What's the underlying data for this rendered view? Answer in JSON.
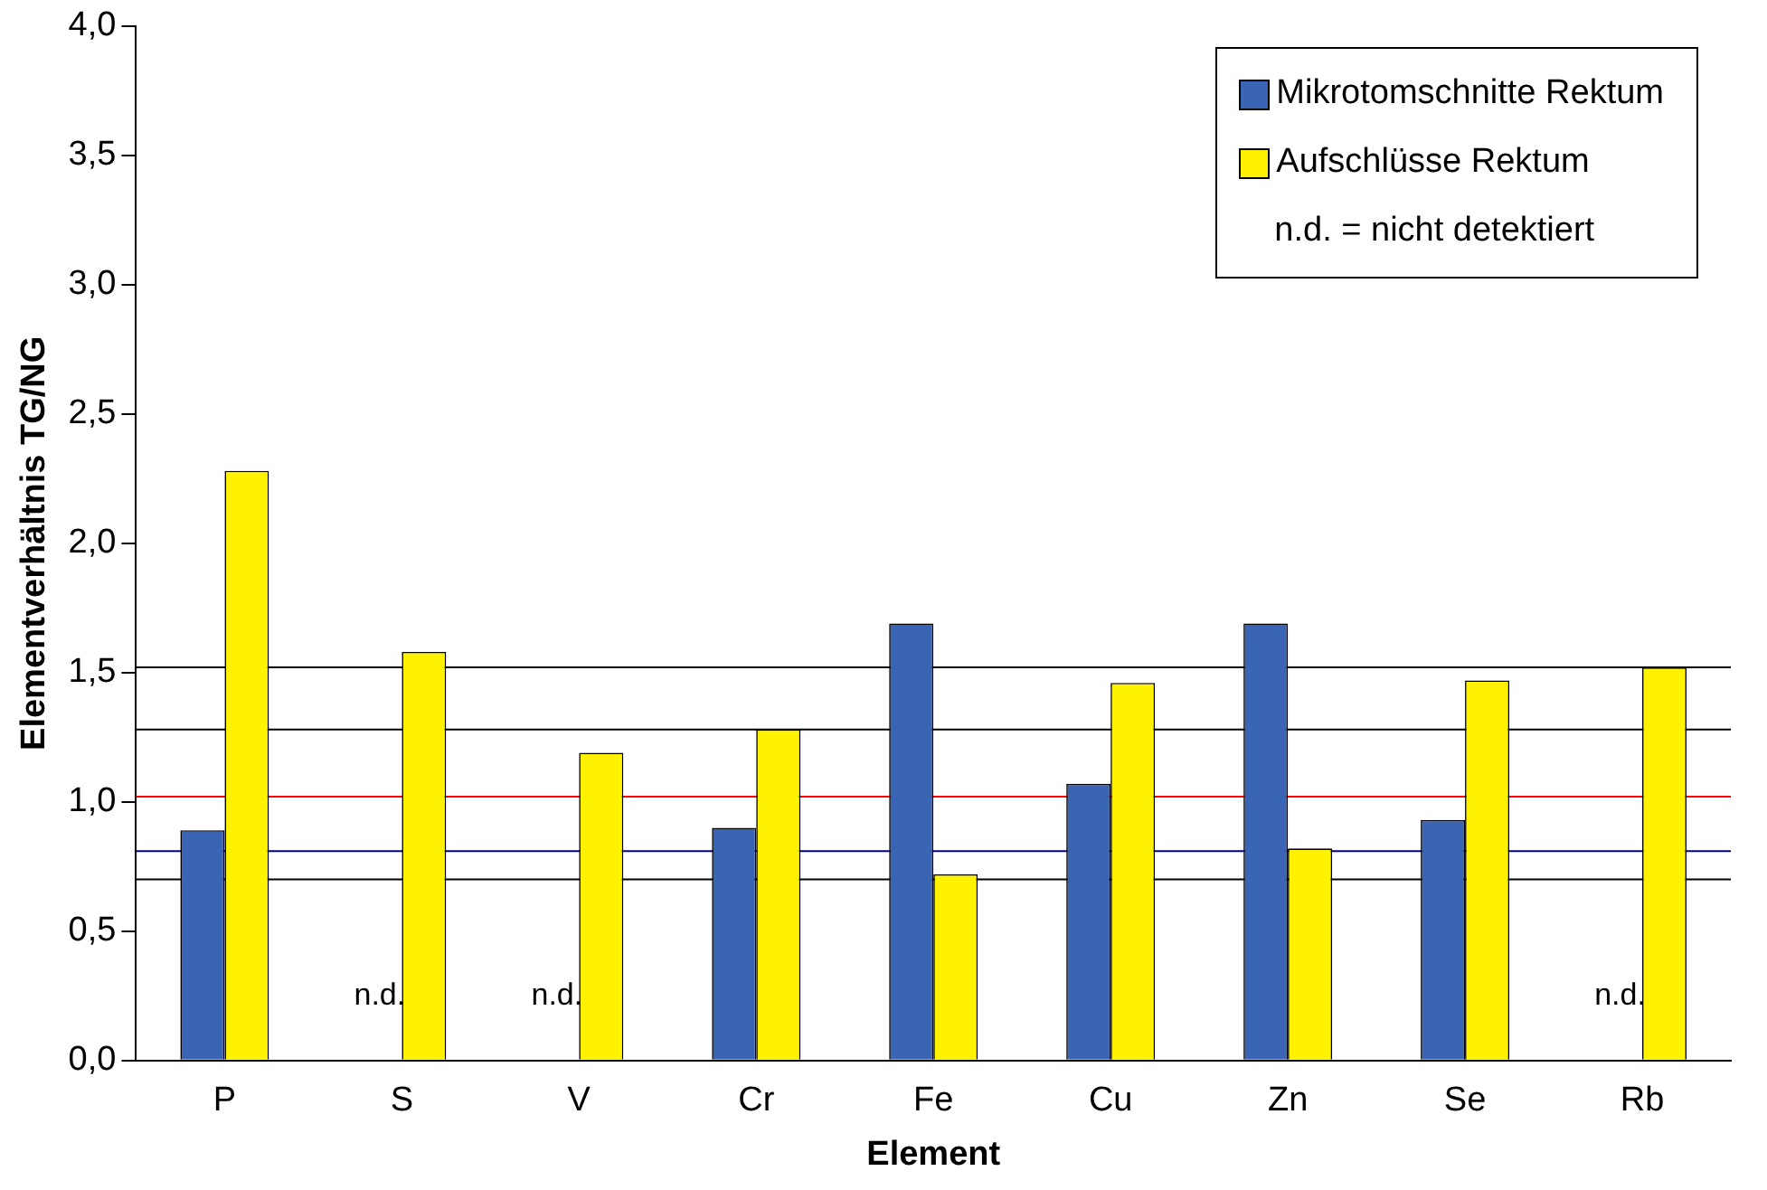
{
  "chart_data": {
    "type": "bar",
    "xlabel": "Element",
    "ylabel": "Elementverhältnis TG/NG",
    "categories": [
      "P",
      "S",
      "V",
      "Cr",
      "Fe",
      "Cu",
      "Zn",
      "Se",
      "Rb"
    ],
    "series": [
      {
        "name": "Mikrotomschnitte Rektum",
        "color": "#3a65b5",
        "values": [
          0.89,
          null,
          null,
          0.9,
          1.69,
          1.07,
          1.69,
          0.93,
          null
        ]
      },
      {
        "name": "Aufschlüsse Rektum",
        "color": "#fff200",
        "values": [
          2.28,
          1.58,
          1.19,
          1.28,
          0.72,
          1.46,
          0.82,
          1.47,
          1.52
        ]
      }
    ],
    "ylim": [
      0,
      4
    ],
    "yticks": [
      {
        "value": 0,
        "label": "0,0"
      },
      {
        "value": 0.5,
        "label": "0,5"
      },
      {
        "value": 1,
        "label": "1,0"
      },
      {
        "value": 1.5,
        "label": "1,5"
      },
      {
        "value": 2,
        "label": "2,0"
      },
      {
        "value": 2.5,
        "label": "2,5"
      },
      {
        "value": 3,
        "label": "3,0"
      },
      {
        "value": 3.5,
        "label": "3,5"
      },
      {
        "value": 4,
        "label": "4,0"
      }
    ],
    "ref_lines": [
      {
        "axis": "y",
        "value": 1.52,
        "color": "#000000"
      },
      {
        "axis": "y",
        "value": 1.28,
        "color": "#000000"
      },
      {
        "axis": "y",
        "value": 1.02,
        "color": "#ff0000"
      },
      {
        "axis": "y",
        "value": 0.81,
        "color": "#000080"
      },
      {
        "axis": "y",
        "value": 0.7,
        "color": "#000000"
      }
    ],
    "annotations": [
      "n.d. = nicht detektiert",
      {
        "text": "n.d.",
        "x": "S",
        "y": 0.25
      },
      {
        "text": "n.d.",
        "x": "V",
        "y": 0.25
      },
      {
        "text": "n.d.",
        "x": "Rb",
        "y": 0.25
      }
    ],
    "legend": "top right",
    "grid": false
  }
}
